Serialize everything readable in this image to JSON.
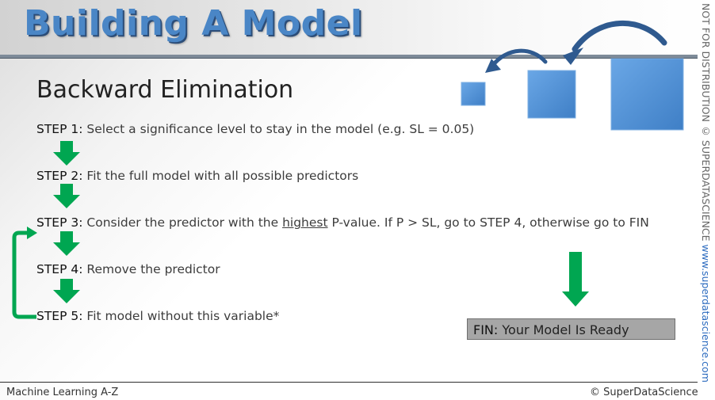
{
  "title": "Building A Model",
  "subtitle": "Backward Elimination",
  "steps": [
    {
      "label": "STEP 1:",
      "text": "Select a significance level to stay in the model (e.g. SL = 0.05)"
    },
    {
      "label": "STEP 2:",
      "text": "Fit the full model with all possible predictors"
    },
    {
      "label": "STEP 3:",
      "text_before": "Consider the predictor with the",
      "highlight": "highest",
      "text_after": "P-value. If P > SL, go to STEP 4, otherwise go to FIN"
    },
    {
      "label": "STEP 4:",
      "text": "Remove the predictor"
    },
    {
      "label": "STEP 5:",
      "text": "Fit model without this variable*"
    }
  ],
  "fin": {
    "label": "FIN:",
    "text": "Your Model Is Ready"
  },
  "side_text": {
    "notice": "NOT FOR DISTRIBUTION © SUPERDATASCIENCE",
    "website": "www.superdatascience.com"
  },
  "footer": {
    "left": "Machine Learning A-Z",
    "right": "© SuperDataScience"
  },
  "colors": {
    "title_blue": "#4a86c6",
    "arrow_green": "#00a651",
    "square_blue": "#4a8fd6"
  },
  "icons": [
    "down-arrow-icon",
    "loop-back-arrow-icon",
    "curved-arrow-icon",
    "shrinking-squares-graphic"
  ]
}
